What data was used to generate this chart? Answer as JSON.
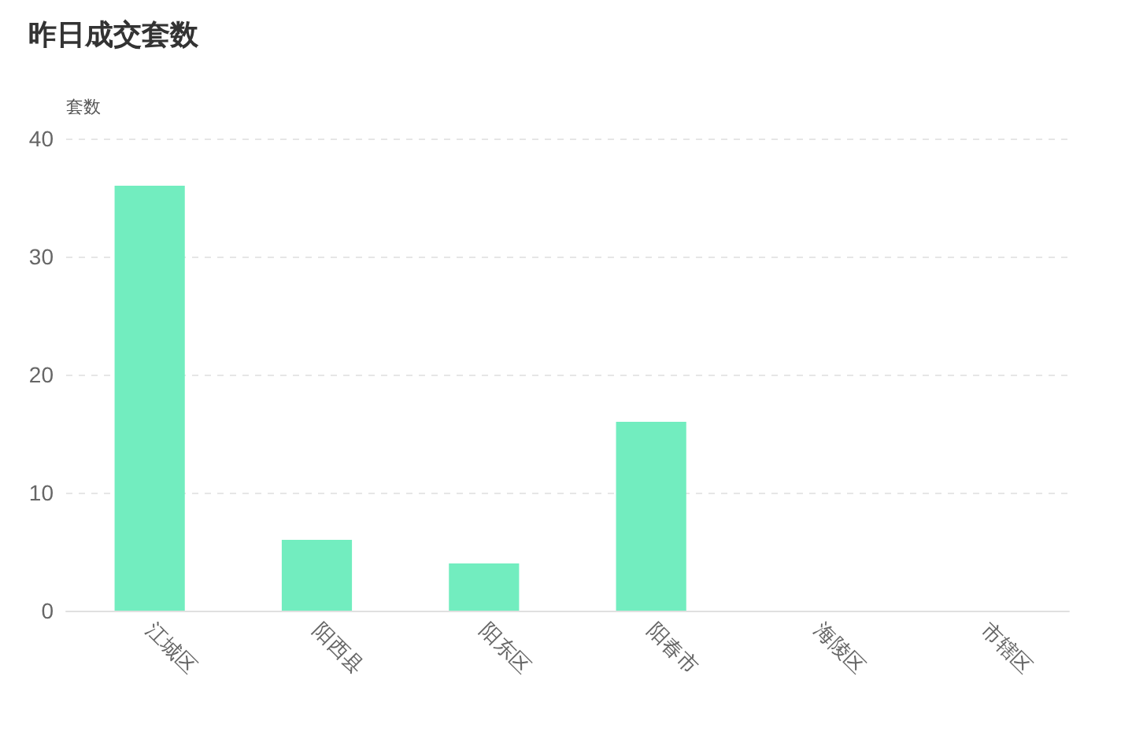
{
  "chart_data": {
    "type": "bar",
    "title": "昨日成交套数",
    "ylabel": "套数",
    "categories": [
      "江城区",
      "阳西县",
      "阳东区",
      "阳春市",
      "海陵区",
      "市辖区"
    ],
    "values": [
      36,
      6,
      4,
      16,
      0,
      0
    ],
    "color": "#72edbf",
    "ylim": [
      0,
      40
    ],
    "yticks": [
      0,
      10,
      20,
      30,
      40
    ],
    "grid": "y"
  }
}
